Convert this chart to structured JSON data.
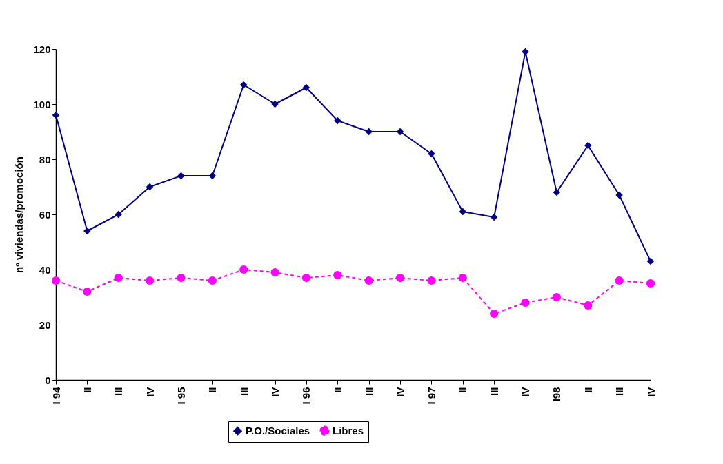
{
  "chart_data": {
    "type": "line",
    "ylabel": "nº viviendas/promoción",
    "categories": [
      "I 94",
      "II",
      "III",
      "IV",
      "I 95",
      "II",
      "III",
      "IV",
      "I 96",
      "II",
      "III",
      "IV",
      "I 97",
      "II",
      "III",
      "IV",
      "I98",
      "II",
      "III",
      "IV"
    ],
    "series": [
      {
        "name": "P.O./Sociales",
        "color": "#000080",
        "marker": "diamond",
        "line_style": "solid",
        "values": [
          96,
          54,
          60,
          70,
          74,
          74,
          107,
          100,
          106,
          94,
          90,
          90,
          82,
          61,
          59,
          119,
          68,
          85,
          67,
          43
        ]
      },
      {
        "name": "Libres",
        "color": "#ff00ff",
        "marker": "circle",
        "line_style": "dashed",
        "values": [
          36,
          32,
          37,
          36,
          37,
          36,
          40,
          39,
          37,
          38,
          36,
          37,
          36,
          37,
          24,
          28,
          30,
          27,
          36,
          35
        ]
      }
    ],
    "ylim": [
      0,
      120
    ],
    "yticks": [
      0,
      20,
      40,
      60,
      80,
      100,
      120
    ],
    "grid": false,
    "legend": "bottom"
  }
}
